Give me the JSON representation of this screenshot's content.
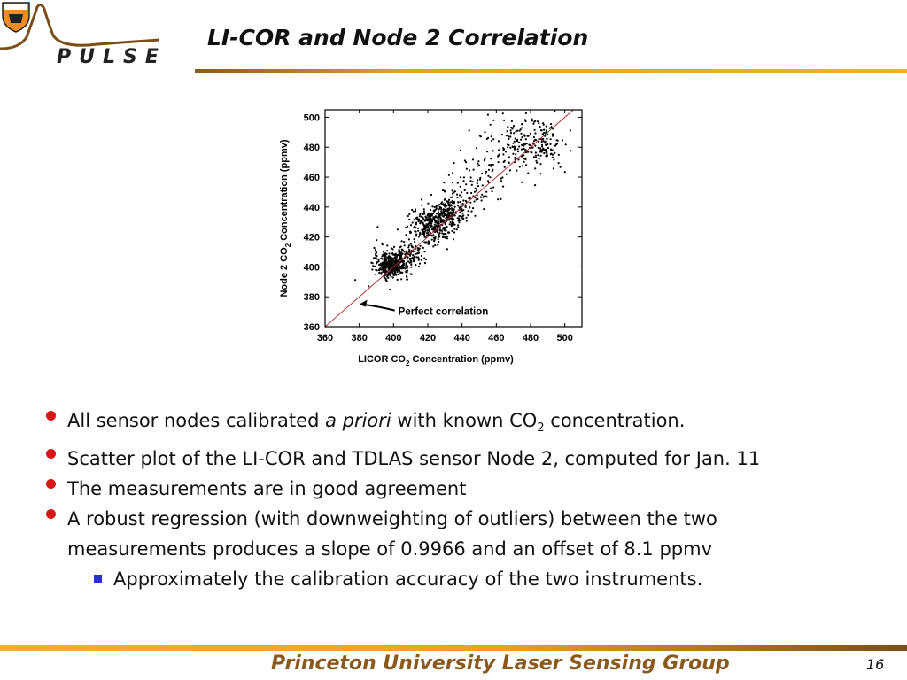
{
  "slide": {
    "title": "LI-COR and Node 2 Correlation",
    "page_number": "16",
    "footer": "Princeton University Laser Sensing Group"
  },
  "logo": {
    "text": "PULSE",
    "icon": "princeton-shield-icon"
  },
  "colors": {
    "accent": "#f0a020",
    "footer_text": "#8a5a1c",
    "bullet": "#d81818",
    "sub_bullet": "#2b2bd8",
    "reference_line": "#b03030",
    "points": "#000000"
  },
  "bullets": [
    {
      "pre": "All sensor nodes calibrated ",
      "em": "a priori",
      "mid": " with known CO",
      "sub": "2",
      "post": " concentration."
    },
    {
      "text": "Scatter plot of the LI-COR and TDLAS sensor Node 2, computed for Jan. 11"
    },
    {
      "text": "The measurements are in good agreement"
    },
    {
      "text": "A robust regression (with downweighting of outliers) between the two measurements produces a slope of 0.9966 and an offset of 8.1 ppmv"
    }
  ],
  "sub_bullets": [
    {
      "text": "Approximately the calibration accuracy of the two instruments."
    }
  ],
  "chart_data": {
    "type": "scatter",
    "xlabel": {
      "pre": "LICOR CO",
      "sub": "2",
      "post": " Concentration (ppmv)"
    },
    "ylabel": {
      "pre": "Node 2 CO",
      "sub": "2",
      "post": " Concentration (ppmv)"
    },
    "xlim": [
      360,
      510
    ],
    "ylim": [
      360,
      505
    ],
    "xticks": [
      360,
      380,
      400,
      420,
      440,
      460,
      480,
      500
    ],
    "yticks": [
      360,
      380,
      400,
      420,
      440,
      460,
      480,
      500
    ],
    "grid": false,
    "reference_line": {
      "slope": 1,
      "intercept": 0
    },
    "annotation": {
      "text": "Perfect correlation",
      "arrow_to": [
        380,
        375
      ]
    },
    "point_clusters": [
      {
        "cx": 399,
        "cy": 401,
        "sx": 5,
        "sy": 4,
        "n": 420
      },
      {
        "cx": 410,
        "cy": 408,
        "sx": 4,
        "sy": 4,
        "n": 90
      },
      {
        "cx": 422,
        "cy": 428,
        "sx": 6,
        "sy": 6,
        "n": 320
      },
      {
        "cx": 432,
        "cy": 436,
        "sx": 5,
        "sy": 5,
        "n": 160
      },
      {
        "cx": 442,
        "cy": 446,
        "sx": 7,
        "sy": 7,
        "n": 90
      },
      {
        "cx": 455,
        "cy": 468,
        "sx": 8,
        "sy": 10,
        "n": 70
      },
      {
        "cx": 480,
        "cy": 480,
        "sx": 8,
        "sy": 8,
        "n": 120
      },
      {
        "cx": 470,
        "cy": 492,
        "sx": 8,
        "sy": 6,
        "n": 40
      },
      {
        "cx": 489,
        "cy": 485,
        "sx": 6,
        "sy": 10,
        "n": 60
      },
      {
        "cx": 395,
        "cy": 410,
        "sx": 8,
        "sy": 8,
        "n": 20
      }
    ]
  }
}
